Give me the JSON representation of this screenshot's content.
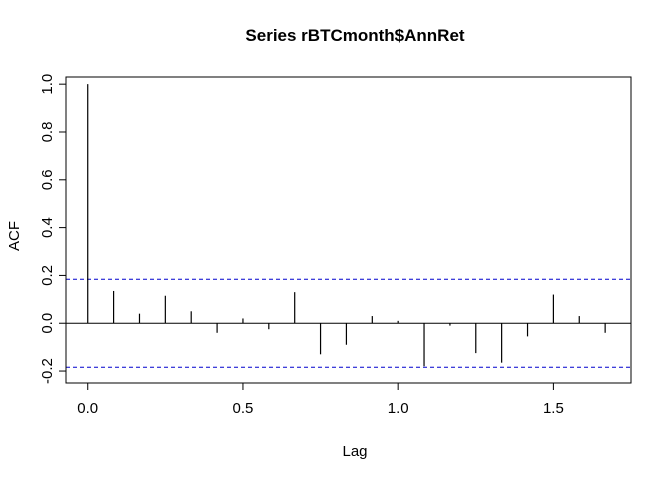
{
  "chart_data": {
    "type": "bar",
    "title": "Series  rBTCmonth$AnnRet",
    "xlabel": "Lag",
    "ylabel": "ACF",
    "xlim": [
      -0.07,
      1.75
    ],
    "ylim": [
      -0.25,
      1.03
    ],
    "x_ticks": [
      {
        "value": 0.0,
        "label": "0.0"
      },
      {
        "value": 0.5,
        "label": "0.5"
      },
      {
        "value": 1.0,
        "label": "1.0"
      },
      {
        "value": 1.5,
        "label": "1.5"
      }
    ],
    "y_ticks": [
      {
        "value": -0.2,
        "label": "-0.2"
      },
      {
        "value": 0.0,
        "label": "0.0"
      },
      {
        "value": 0.2,
        "label": "0.2"
      },
      {
        "value": 0.4,
        "label": "0.4"
      },
      {
        "value": 0.6,
        "label": "0.6"
      },
      {
        "value": 0.8,
        "label": "0.8"
      },
      {
        "value": 1.0,
        "label": "1.0"
      }
    ],
    "lags": [
      0.0,
      0.0833,
      0.1667,
      0.25,
      0.3333,
      0.4167,
      0.5,
      0.5833,
      0.6667,
      0.75,
      0.8333,
      0.9167,
      1.0,
      1.0833,
      1.1667,
      1.25,
      1.3333,
      1.4167,
      1.5,
      1.5833,
      1.6667
    ],
    "acf": [
      1.0,
      0.135,
      0.04,
      0.115,
      0.05,
      -0.04,
      0.02,
      -0.025,
      0.13,
      -0.13,
      -0.09,
      0.03,
      0.01,
      -0.18,
      -0.01,
      -0.125,
      -0.165,
      -0.055,
      0.12,
      0.03,
      -0.04
    ],
    "confidence_bounds": [
      0.184,
      -0.184
    ],
    "colors": {
      "bars": "#000000",
      "bounds": "#0000cd",
      "zero_line": "#000000",
      "frame": "#000000"
    },
    "grid": false,
    "legend": "none"
  }
}
